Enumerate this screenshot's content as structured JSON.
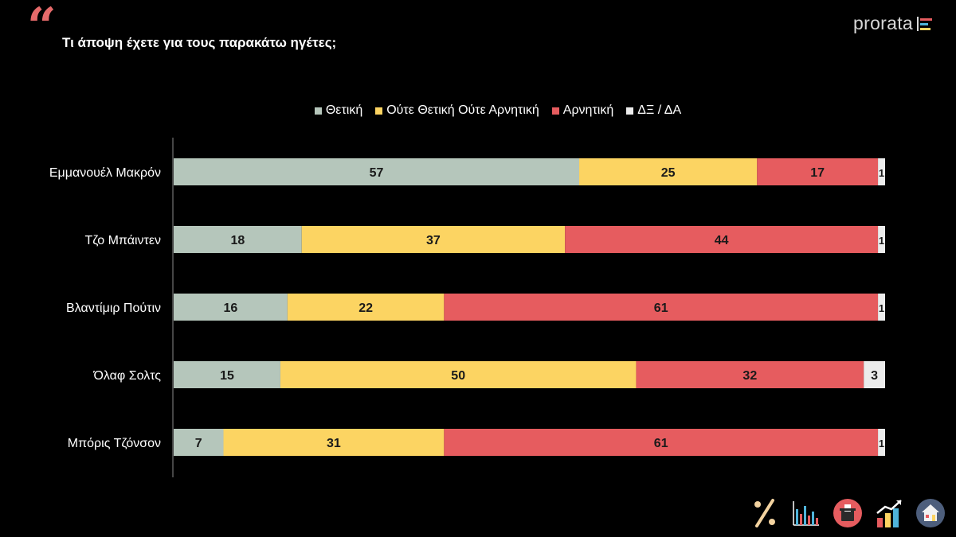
{
  "header": {
    "quote_mark": "“",
    "title": "Τι άποψη έχετε για τους παρακάτω ηγέτες;",
    "brand": "prorata"
  },
  "chart_data": {
    "type": "bar",
    "orientation": "horizontal",
    "stacked": true,
    "title": "Τι άποψη έχετε για τους παρακάτω ηγέτες;",
    "categories": [
      "Εμμανουέλ Μακρόν",
      "Τζο Μπάιντεν",
      "Βλαντίμιρ Πούτιν",
      "Όλαφ Σολτς",
      "Μπόρις Τζόνσον"
    ],
    "series": [
      {
        "name": "Θετική",
        "color": "#b5c6bb",
        "values": [
          57,
          18,
          16,
          15,
          7
        ]
      },
      {
        "name": "Ούτε Θετική Ούτε Αρνητική",
        "color": "#fcd462",
        "values": [
          25,
          37,
          22,
          50,
          31
        ]
      },
      {
        "name": "Αρνητική",
        "color": "#e65c5f",
        "values": [
          17,
          44,
          61,
          32,
          61
        ]
      },
      {
        "name": "ΔΞ / ΔΑ",
        "color": "#ececec",
        "values": [
          1,
          1,
          1,
          3,
          1
        ]
      }
    ],
    "xlim": [
      0,
      100
    ],
    "legend_position": "top",
    "grid": false,
    "data_labels": true
  },
  "footer": {
    "icons": [
      "percent-icon",
      "bar-chart-icon",
      "ballot-box-icon",
      "growth-chart-icon",
      "house-icon"
    ]
  }
}
